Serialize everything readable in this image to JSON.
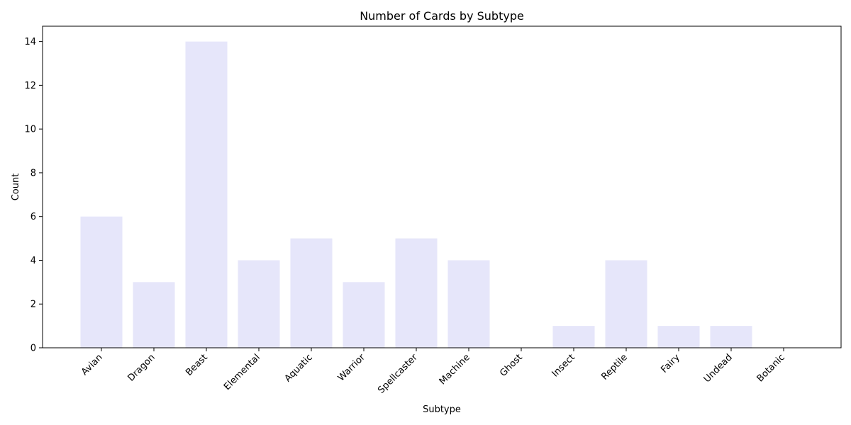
{
  "chart_data": {
    "type": "bar",
    "title": "Number of Cards by Subtype",
    "xlabel": "Subtype",
    "ylabel": "Count",
    "categories": [
      "Avian",
      "Dragon",
      "Beast",
      "Elemental",
      "Aquatic",
      "Warrior",
      "Spellcaster",
      "Machine",
      "Ghost",
      "Insect",
      "Reptile",
      "Fairy",
      "Undead",
      "Botanic"
    ],
    "values": [
      6,
      3,
      14,
      4,
      5,
      3,
      5,
      4,
      0,
      1,
      4,
      1,
      1,
      0
    ],
    "ylim": [
      0,
      14.7
    ],
    "yticks": [
      0,
      2,
      4,
      6,
      8,
      10,
      12,
      14
    ],
    "bar_color": "#e6e6fa",
    "grid": false,
    "legend": "none"
  }
}
